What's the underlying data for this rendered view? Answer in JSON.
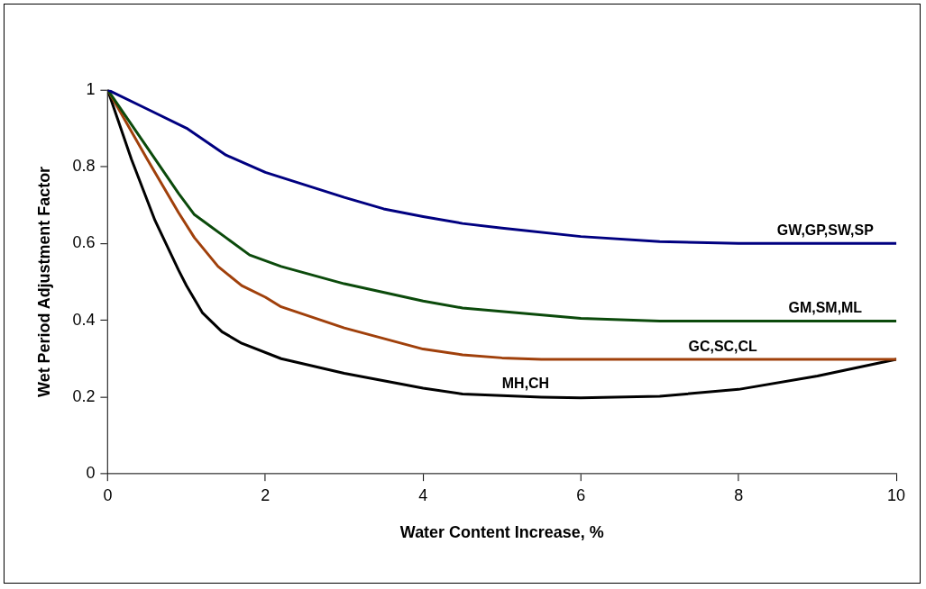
{
  "chart_data": {
    "type": "line",
    "xlabel": "Water Content Increase, %",
    "ylabel": "Wet Period Adjustment Factor",
    "xlim": [
      0,
      10
    ],
    "xticks": [
      0,
      2,
      4,
      6,
      8,
      10
    ],
    "ylim": [
      0,
      1
    ],
    "yticks": [
      0,
      0.2,
      0.4,
      0.6,
      0.8,
      1
    ],
    "grid": false,
    "legend": false,
    "marker": "none",
    "line_style": "solid",
    "series": [
      {
        "name": "GW,GP,SW,SP",
        "color": "#000080",
        "x": [
          0,
          0.5,
          1,
          1.5,
          2,
          3,
          3.5,
          4,
          4.5,
          5,
          6,
          7,
          8,
          9,
          10
        ],
        "values": [
          1,
          0.95,
          0.9,
          0.83,
          0.785,
          0.72,
          0.69,
          0.67,
          0.652,
          0.64,
          0.618,
          0.605,
          0.6,
          0.6,
          0.6
        ]
      },
      {
        "name": "GM,SM,ML",
        "color": "#0b4a0b",
        "x": [
          0,
          0.5,
          0.9,
          1.1,
          1.5,
          1.8,
          2.2,
          3,
          4,
          4.5,
          6,
          7,
          8,
          10
        ],
        "values": [
          1,
          0.85,
          0.73,
          0.675,
          0.615,
          0.57,
          0.54,
          0.495,
          0.45,
          0.432,
          0.405,
          0.398,
          0.398,
          0.398
        ]
      },
      {
        "name": "GC,SC,CL",
        "color": "#a0400b",
        "x": [
          0,
          0.5,
          0.9,
          1.1,
          1.4,
          1.7,
          2,
          2.2,
          3,
          4,
          4.5,
          5,
          5.5,
          7,
          10
        ],
        "values": [
          1,
          0.82,
          0.68,
          0.615,
          0.54,
          0.49,
          0.46,
          0.435,
          0.38,
          0.325,
          0.31,
          0.302,
          0.298,
          0.298,
          0.298
        ]
      },
      {
        "name": "MH,CH",
        "color": "#000000",
        "x": [
          0,
          0.3,
          0.6,
          0.9,
          1,
          1.2,
          1.45,
          1.7,
          2.2,
          3,
          4,
          4.5,
          5.5,
          6,
          7,
          8,
          9,
          10
        ],
        "values": [
          1,
          0.82,
          0.66,
          0.53,
          0.49,
          0.42,
          0.37,
          0.34,
          0.3,
          0.262,
          0.223,
          0.208,
          0.2,
          0.198,
          0.202,
          0.22,
          0.255,
          0.298
        ]
      }
    ]
  }
}
